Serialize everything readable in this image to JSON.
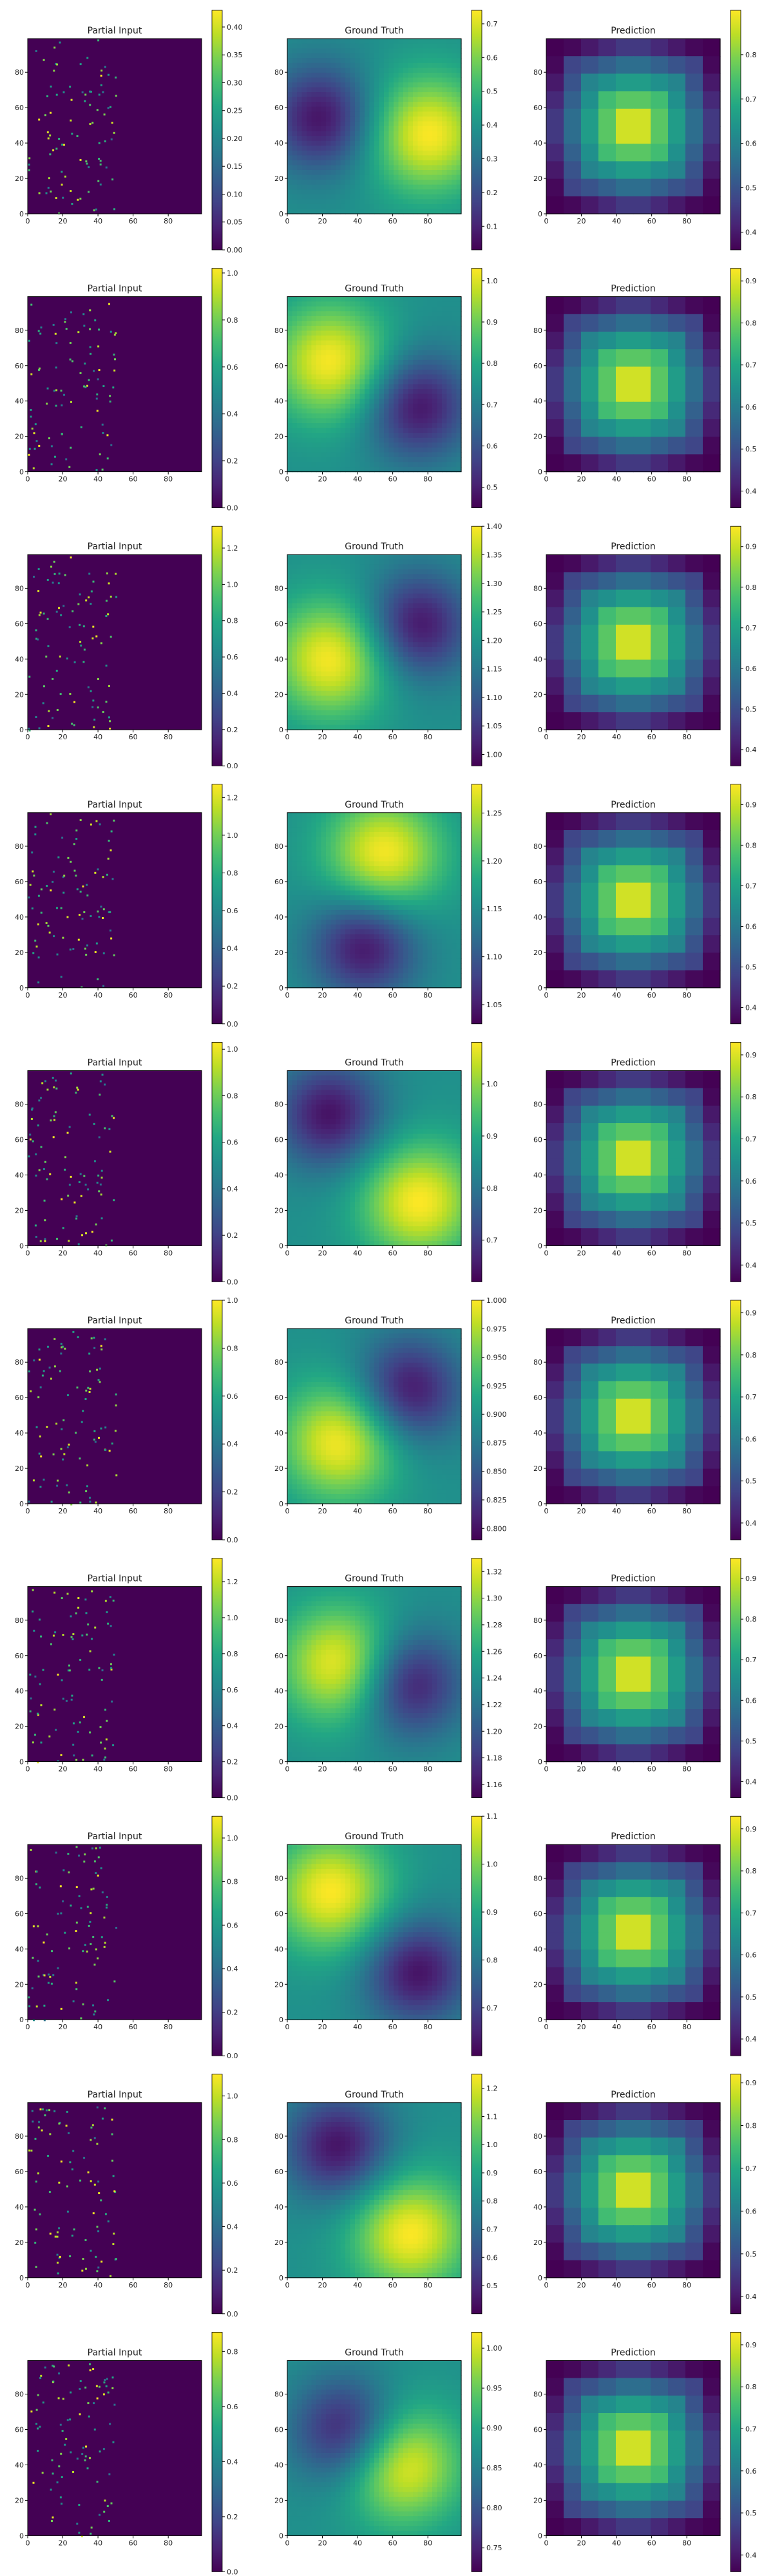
{
  "chart_data": {
    "type": "heatmap",
    "layout": {
      "rows": 10,
      "columns": 3
    },
    "colormap": "viridis",
    "column_titles": [
      "Partial Input",
      "Ground Truth",
      "Prediction"
    ],
    "axis_ticks": [
      "0",
      "20",
      "40",
      "60",
      "80"
    ],
    "xlim": [
      0,
      99
    ],
    "ylim": [
      0,
      99
    ],
    "rows": [
      {
        "partial_input": {
          "title": "Partial Input",
          "colorbar_range": [
            0.0,
            0.43
          ],
          "colorbar_ticks": [
            "0.00",
            "0.05",
            "0.10",
            "0.15",
            "0.20",
            "0.25",
            "0.30",
            "0.35",
            "0.40"
          ],
          "observed_x_range": [
            0,
            50
          ]
        },
        "ground_truth": {
          "title": "Ground Truth",
          "colorbar_range": [
            0.03,
            0.74
          ],
          "colorbar_ticks": [
            "0.1",
            "0.2",
            "0.3",
            "0.4",
            "0.5",
            "0.6",
            "0.7"
          ],
          "peak_x": 80,
          "peak_y": 45
        },
        "prediction": {
          "title": "Prediction",
          "colorbar_range": [
            0.36,
            0.9
          ],
          "colorbar_ticks": [
            "0.4",
            "0.5",
            "0.6",
            "0.7",
            "0.8"
          ],
          "peak_x": 50,
          "peak_y": 50
        }
      },
      {
        "partial_input": {
          "title": "Partial Input",
          "colorbar_range": [
            0.0,
            1.02
          ],
          "colorbar_ticks": [
            "0.0",
            "0.2",
            "0.4",
            "0.6",
            "0.8",
            "1.0"
          ],
          "observed_x_range": [
            0,
            50
          ]
        },
        "ground_truth": {
          "title": "Ground Truth",
          "colorbar_range": [
            0.45,
            1.03
          ],
          "colorbar_ticks": [
            "0.5",
            "0.6",
            "0.7",
            "0.8",
            "0.9",
            "1.0"
          ],
          "peak_x": 25,
          "peak_y": 62
        },
        "prediction": {
          "title": "Prediction",
          "colorbar_range": [
            0.36,
            0.93
          ],
          "colorbar_ticks": [
            "0.4",
            "0.5",
            "0.6",
            "0.7",
            "0.8",
            "0.9"
          ],
          "peak_x": 50,
          "peak_y": 50
        }
      },
      {
        "partial_input": {
          "title": "Partial Input",
          "colorbar_range": [
            0.0,
            1.32
          ],
          "colorbar_ticks": [
            "0.0",
            "0.2",
            "0.4",
            "0.6",
            "0.8",
            "1.0",
            "1.2"
          ],
          "observed_x_range": [
            0,
            50
          ]
        },
        "ground_truth": {
          "title": "Ground Truth",
          "colorbar_range": [
            0.98,
            1.4
          ],
          "colorbar_ticks": [
            "1.00",
            "1.05",
            "1.10",
            "1.15",
            "1.20",
            "1.25",
            "1.30",
            "1.35",
            "1.40"
          ],
          "peak_x": 25,
          "peak_y": 40
        },
        "prediction": {
          "title": "Prediction",
          "colorbar_range": [
            0.36,
            0.95
          ],
          "colorbar_ticks": [
            "0.4",
            "0.5",
            "0.6",
            "0.7",
            "0.8",
            "0.9"
          ],
          "peak_x": 50,
          "peak_y": 50
        }
      },
      {
        "partial_input": {
          "title": "Partial Input",
          "colorbar_range": [
            0.0,
            1.27
          ],
          "colorbar_ticks": [
            "0.0",
            "0.2",
            "0.4",
            "0.6",
            "0.8",
            "1.0",
            "1.2"
          ],
          "observed_x_range": [
            0,
            50
          ]
        },
        "ground_truth": {
          "title": "Ground Truth",
          "colorbar_range": [
            1.03,
            1.28
          ],
          "colorbar_ticks": [
            "1.05",
            "1.10",
            "1.15",
            "1.20",
            "1.25"
          ],
          "peak_x": 55,
          "peak_y": 75
        },
        "prediction": {
          "title": "Prediction",
          "colorbar_range": [
            0.36,
            0.95
          ],
          "colorbar_ticks": [
            "0.4",
            "0.5",
            "0.6",
            "0.7",
            "0.8",
            "0.9"
          ],
          "peak_x": 50,
          "peak_y": 50
        }
      },
      {
        "partial_input": {
          "title": "Partial Input",
          "colorbar_range": [
            0.0,
            1.03
          ],
          "colorbar_ticks": [
            "0.0",
            "0.2",
            "0.4",
            "0.6",
            "0.8",
            "1.0"
          ],
          "observed_x_range": [
            0,
            50
          ]
        },
        "ground_truth": {
          "title": "Ground Truth",
          "colorbar_range": [
            0.62,
            1.08
          ],
          "colorbar_ticks": [
            "0.7",
            "0.8",
            "0.9",
            "1.0"
          ],
          "peak_x": 75,
          "peak_y": 25
        },
        "prediction": {
          "title": "Prediction",
          "colorbar_range": [
            0.36,
            0.93
          ],
          "colorbar_ticks": [
            "0.4",
            "0.5",
            "0.6",
            "0.7",
            "0.8",
            "0.9"
          ],
          "peak_x": 50,
          "peak_y": 50
        }
      },
      {
        "partial_input": {
          "title": "Partial Input",
          "colorbar_range": [
            0.0,
            1.0
          ],
          "colorbar_ticks": [
            "0.0",
            "0.2",
            "0.4",
            "0.6",
            "0.8",
            "1.0"
          ],
          "observed_x_range": [
            0,
            50
          ]
        },
        "ground_truth": {
          "title": "Ground Truth",
          "colorbar_range": [
            0.79,
            1.0
          ],
          "colorbar_ticks": [
            "0.800",
            "0.825",
            "0.850",
            "0.875",
            "0.900",
            "0.925",
            "0.950",
            "0.975",
            "1.000"
          ],
          "peak_x": 30,
          "peak_y": 35
        },
        "prediction": {
          "title": "Prediction",
          "colorbar_range": [
            0.36,
            0.93
          ],
          "colorbar_ticks": [
            "0.4",
            "0.5",
            "0.6",
            "0.7",
            "0.8",
            "0.9"
          ],
          "peak_x": 50,
          "peak_y": 50
        }
      },
      {
        "partial_input": {
          "title": "Partial Input",
          "colorbar_range": [
            0.0,
            1.33
          ],
          "colorbar_ticks": [
            "0.0",
            "0.2",
            "0.4",
            "0.6",
            "0.8",
            "1.0",
            "1.2"
          ],
          "observed_x_range": [
            0,
            50
          ]
        },
        "ground_truth": {
          "title": "Ground Truth",
          "colorbar_range": [
            1.15,
            1.33
          ],
          "colorbar_ticks": [
            "1.16",
            "1.18",
            "1.20",
            "1.22",
            "1.24",
            "1.26",
            "1.28",
            "1.30",
            "1.32"
          ],
          "peak_x": 30,
          "peak_y": 55
        },
        "prediction": {
          "title": "Prediction",
          "colorbar_range": [
            0.36,
            0.95
          ],
          "colorbar_ticks": [
            "0.4",
            "0.5",
            "0.6",
            "0.7",
            "0.8",
            "0.9"
          ],
          "peak_x": 50,
          "peak_y": 50
        }
      },
      {
        "partial_input": {
          "title": "Partial Input",
          "colorbar_range": [
            0.0,
            1.1
          ],
          "colorbar_ticks": [
            "0.0",
            "0.2",
            "0.4",
            "0.6",
            "0.8",
            "1.0"
          ],
          "observed_x_range": [
            0,
            50
          ]
        },
        "ground_truth": {
          "title": "Ground Truth",
          "colorbar_range": [
            0.6,
            1.1
          ],
          "colorbar_ticks": [
            "0.7",
            "0.8",
            "0.9",
            "1.0",
            "1.1"
          ],
          "peak_x": 25,
          "peak_y": 72
        },
        "prediction": {
          "title": "Prediction",
          "colorbar_range": [
            0.36,
            0.93
          ],
          "colorbar_ticks": [
            "0.4",
            "0.5",
            "0.6",
            "0.7",
            "0.8",
            "0.9"
          ],
          "peak_x": 50,
          "peak_y": 50
        }
      },
      {
        "partial_input": {
          "title": "Partial Input",
          "colorbar_range": [
            0.0,
            1.1
          ],
          "colorbar_ticks": [
            "0.0",
            "0.2",
            "0.4",
            "0.6",
            "0.8",
            "1.0"
          ],
          "observed_x_range": [
            0,
            50
          ]
        },
        "ground_truth": {
          "title": "Ground Truth",
          "colorbar_range": [
            0.4,
            1.25
          ],
          "colorbar_ticks": [
            "0.5",
            "0.6",
            "0.7",
            "0.8",
            "0.9",
            "1.0",
            "1.1",
            "1.2"
          ],
          "peak_x": 70,
          "peak_y": 25
        },
        "prediction": {
          "title": "Prediction",
          "colorbar_range": [
            0.36,
            0.92
          ],
          "colorbar_ticks": [
            "0.4",
            "0.5",
            "0.6",
            "0.7",
            "0.8",
            "0.9"
          ],
          "peak_x": 50,
          "peak_y": 50
        }
      },
      {
        "partial_input": {
          "title": "Partial Input",
          "colorbar_range": [
            0.0,
            0.87
          ],
          "colorbar_ticks": [
            "0.0",
            "0.2",
            "0.4",
            "0.6",
            "0.8"
          ],
          "observed_x_range": [
            0,
            50
          ]
        },
        "ground_truth": {
          "title": "Ground Truth",
          "colorbar_range": [
            0.72,
            1.02
          ],
          "colorbar_ticks": [
            "0.75",
            "0.80",
            "0.85",
            "0.90",
            "0.95",
            "1.00"
          ],
          "peak_x": 65,
          "peak_y": 40
        },
        "prediction": {
          "title": "Prediction",
          "colorbar_range": [
            0.36,
            0.93
          ],
          "colorbar_ticks": [
            "0.4",
            "0.5",
            "0.6",
            "0.7",
            "0.8",
            "0.9"
          ],
          "peak_x": 50,
          "peak_y": 50
        }
      }
    ]
  }
}
